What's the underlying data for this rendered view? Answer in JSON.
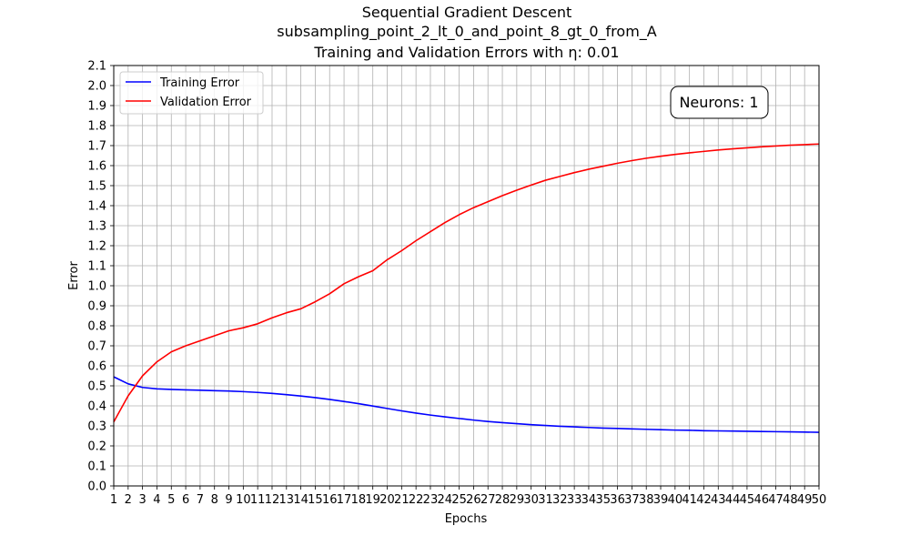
{
  "chart_data": {
    "type": "line",
    "title_lines": [
      "Sequential Gradient Descent",
      "subsampling_point_2_lt_0_and_point_8_gt_0_from_A",
      "Training and Validation Errors with η: 0.01"
    ],
    "xlabel": "Epochs",
    "ylabel": "Error",
    "xlim": [
      1,
      50
    ],
    "ylim": [
      0,
      2.1
    ],
    "x_ticks": [
      1,
      2,
      3,
      4,
      5,
      6,
      7,
      8,
      9,
      10,
      11,
      12,
      13,
      14,
      15,
      16,
      17,
      18,
      19,
      20,
      21,
      22,
      23,
      24,
      25,
      26,
      27,
      28,
      29,
      30,
      31,
      32,
      33,
      34,
      35,
      36,
      37,
      38,
      39,
      40,
      41,
      42,
      43,
      44,
      45,
      46,
      47,
      48,
      49,
      50
    ],
    "y_ticks": [
      "0.0",
      "0.1",
      "0.2",
      "0.3",
      "0.4",
      "0.5",
      "0.6",
      "0.7",
      "0.8",
      "0.9",
      "1.0",
      "1.1",
      "1.2",
      "1.3",
      "1.4",
      "1.5",
      "1.6",
      "1.7",
      "1.8",
      "1.9",
      "2.0",
      "2.1"
    ],
    "grid": true,
    "legend_position": "top-left",
    "annotation": "Neurons: 1",
    "x": [
      1,
      2,
      3,
      4,
      5,
      6,
      7,
      8,
      9,
      10,
      11,
      12,
      13,
      14,
      15,
      16,
      17,
      18,
      19,
      20,
      21,
      22,
      23,
      24,
      25,
      26,
      27,
      28,
      29,
      30,
      31,
      32,
      33,
      34,
      35,
      36,
      37,
      38,
      39,
      40,
      41,
      42,
      43,
      44,
      45,
      46,
      47,
      48,
      49,
      50
    ],
    "series": [
      {
        "name": "Training Error",
        "color": "#0000ff",
        "values": [
          0.545,
          0.51,
          0.492,
          0.485,
          0.482,
          0.48,
          0.478,
          0.476,
          0.474,
          0.471,
          0.467,
          0.462,
          0.456,
          0.449,
          0.441,
          0.432,
          0.422,
          0.411,
          0.399,
          0.387,
          0.375,
          0.364,
          0.354,
          0.345,
          0.337,
          0.329,
          0.322,
          0.316,
          0.311,
          0.306,
          0.302,
          0.298,
          0.295,
          0.292,
          0.289,
          0.287,
          0.285,
          0.283,
          0.281,
          0.279,
          0.278,
          0.276,
          0.275,
          0.274,
          0.273,
          0.272,
          0.271,
          0.27,
          0.269,
          0.268
        ]
      },
      {
        "name": "Validation Error",
        "color": "#ff0000",
        "values": [
          0.32,
          0.45,
          0.55,
          0.62,
          0.67,
          0.7,
          0.725,
          0.75,
          0.775,
          0.79,
          0.81,
          0.84,
          0.865,
          0.885,
          0.92,
          0.96,
          1.01,
          1.045,
          1.075,
          1.13,
          1.175,
          1.225,
          1.27,
          1.315,
          1.355,
          1.39,
          1.42,
          1.45,
          1.477,
          1.503,
          1.527,
          1.546,
          1.565,
          1.582,
          1.597,
          1.612,
          1.625,
          1.637,
          1.647,
          1.656,
          1.664,
          1.671,
          1.678,
          1.684,
          1.689,
          1.694,
          1.698,
          1.702,
          1.705,
          1.708
        ]
      }
    ]
  }
}
